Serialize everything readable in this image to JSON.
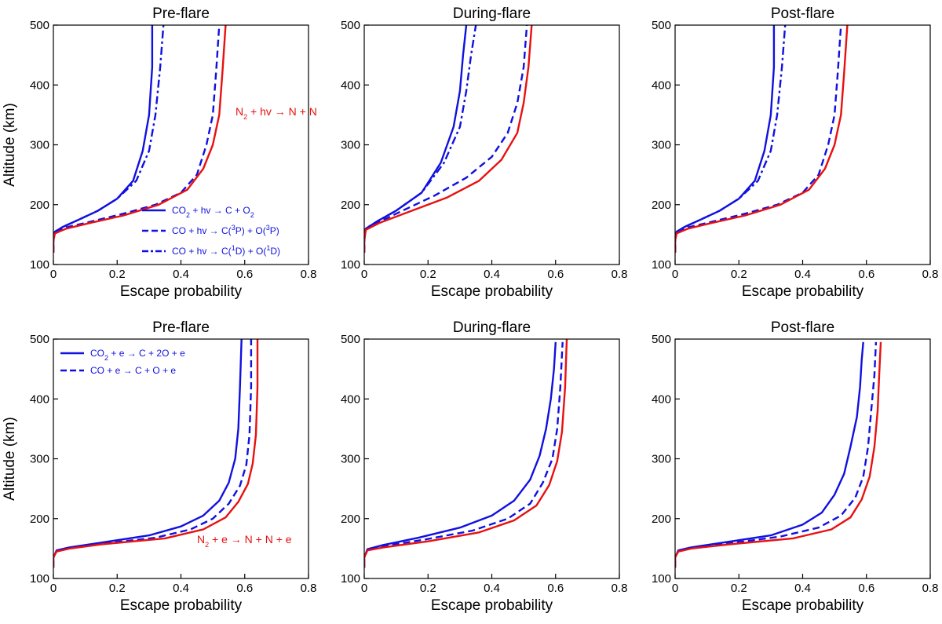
{
  "figure": {
    "colors": {
      "blue": "#1010e0",
      "red": "#e81010",
      "axis": "#000000"
    }
  },
  "chart_data": [
    {
      "type": "line",
      "title": "Pre-flare",
      "xlabel": "Escape probability",
      "ylabel": "Altitude (km)",
      "xlim": [
        0,
        0.8
      ],
      "ylim": [
        100,
        500
      ],
      "xticks": [
        "0",
        "0.2",
        "0.4",
        "0.6",
        "0.8"
      ],
      "yticks": [
        "100",
        "200",
        "300",
        "400",
        "500"
      ],
      "series": [
        {
          "name": "CO2 + hv → C + O2",
          "color": "#1010e0",
          "dash": "solid",
          "x": [
            0,
            0,
            0.005,
            0.03,
            0.08,
            0.14,
            0.2,
            0.25,
            0.28,
            0.3,
            0.31,
            0.31
          ],
          "y": [
            120,
            140,
            155,
            163,
            175,
            190,
            210,
            240,
            290,
            350,
            430,
            500
          ]
        },
        {
          "name": "CO + hv → C(3P) + O(3P)",
          "color": "#1010e0",
          "dash": "dashed",
          "x": [
            0,
            0,
            0.005,
            0.04,
            0.12,
            0.22,
            0.32,
            0.4,
            0.45,
            0.48,
            0.5,
            0.51,
            0.52
          ],
          "y": [
            120,
            140,
            155,
            162,
            172,
            185,
            200,
            220,
            250,
            300,
            350,
            420,
            500
          ]
        },
        {
          "name": "CO + hv → C(1D) + O(1D)",
          "color": "#1010e0",
          "dash": "dashdot",
          "x": [
            0,
            0,
            0.005,
            0.03,
            0.08,
            0.14,
            0.2,
            0.26,
            0.3,
            0.32,
            0.335,
            0.345
          ],
          "y": [
            120,
            140,
            155,
            163,
            175,
            190,
            210,
            240,
            290,
            350,
            430,
            500
          ]
        },
        {
          "name": "N2 + hv → N + N",
          "color": "#e81010",
          "dash": "solid",
          "x": [
            0,
            0,
            0.005,
            0.04,
            0.12,
            0.22,
            0.33,
            0.42,
            0.47,
            0.5,
            0.52,
            0.53,
            0.54
          ],
          "y": [
            120,
            140,
            152,
            160,
            170,
            182,
            200,
            225,
            260,
            300,
            350,
            420,
            500
          ]
        }
      ],
      "annotations": [
        {
          "text": "N2 + hv → N + N",
          "color": "#e81010"
        }
      ],
      "legend": {
        "position": "lower-right",
        "entries": [
          "CO2 + hv → C + O2",
          "CO + hv → C(3P) + O(3P)",
          "CO + hv → C(1D) + O(1D)"
        ]
      }
    },
    {
      "type": "line",
      "title": "During-flare",
      "xlabel": "Escape probability",
      "ylabel": "",
      "xlim": [
        0,
        0.8
      ],
      "ylim": [
        100,
        500
      ],
      "xticks": [
        "0",
        "0.2",
        "0.4",
        "0.6",
        "0.8"
      ],
      "yticks": [
        "100",
        "200",
        "300",
        "400",
        "500"
      ],
      "series": [
        {
          "name": "CO2 + hv → C + O2",
          "color": "#1010e0",
          "dash": "solid",
          "x": [
            0,
            0,
            0.005,
            0.04,
            0.1,
            0.18,
            0.24,
            0.28,
            0.3,
            0.31,
            0.32
          ],
          "y": [
            120,
            140,
            160,
            172,
            190,
            220,
            270,
            330,
            390,
            450,
            500
          ]
        },
        {
          "name": "CO + hv → C(3P) + O(3P)",
          "color": "#1010e0",
          "dash": "dashed",
          "x": [
            0,
            0,
            0.005,
            0.05,
            0.12,
            0.22,
            0.32,
            0.4,
            0.45,
            0.48,
            0.5,
            0.51
          ],
          "y": [
            120,
            140,
            160,
            172,
            190,
            215,
            245,
            280,
            320,
            370,
            430,
            500
          ]
        },
        {
          "name": "CO + hv → C(1D) + O(1D)",
          "color": "#1010e0",
          "dash": "dashdot",
          "x": [
            0,
            0,
            0.005,
            0.04,
            0.1,
            0.18,
            0.25,
            0.3,
            0.32,
            0.335,
            0.35
          ],
          "y": [
            120,
            140,
            160,
            172,
            190,
            220,
            270,
            330,
            390,
            450,
            500
          ]
        },
        {
          "name": "N2 + hv → N + N",
          "color": "#e81010",
          "dash": "solid",
          "x": [
            0,
            0,
            0.005,
            0.05,
            0.14,
            0.26,
            0.36,
            0.43,
            0.48,
            0.5,
            0.515,
            0.525
          ],
          "y": [
            120,
            140,
            158,
            170,
            188,
            212,
            240,
            275,
            320,
            370,
            430,
            500
          ]
        }
      ]
    },
    {
      "type": "line",
      "title": "Post-flare",
      "xlabel": "Escape probability",
      "ylabel": "",
      "xlim": [
        0,
        0.8
      ],
      "ylim": [
        100,
        500
      ],
      "xticks": [
        "0",
        "0.2",
        "0.4",
        "0.6",
        "0.8"
      ],
      "yticks": [
        "100",
        "200",
        "300",
        "400",
        "500"
      ],
      "series": [
        {
          "name": "CO2 + hv → C + O2",
          "color": "#1010e0",
          "dash": "solid",
          "x": [
            0,
            0,
            0.005,
            0.03,
            0.08,
            0.14,
            0.2,
            0.25,
            0.28,
            0.3,
            0.31,
            0.31
          ],
          "y": [
            120,
            140,
            155,
            163,
            175,
            190,
            210,
            240,
            290,
            350,
            430,
            500
          ]
        },
        {
          "name": "CO + hv → C(3P) + O(3P)",
          "color": "#1010e0",
          "dash": "dashed",
          "x": [
            0,
            0,
            0.005,
            0.04,
            0.12,
            0.22,
            0.32,
            0.4,
            0.45,
            0.48,
            0.5,
            0.51,
            0.52
          ],
          "y": [
            120,
            140,
            155,
            162,
            172,
            185,
            200,
            220,
            250,
            300,
            350,
            420,
            500
          ]
        },
        {
          "name": "CO + hv → C(1D) + O(1D)",
          "color": "#1010e0",
          "dash": "dashdot",
          "x": [
            0,
            0,
            0.005,
            0.03,
            0.08,
            0.14,
            0.2,
            0.26,
            0.3,
            0.32,
            0.335,
            0.345
          ],
          "y": [
            120,
            140,
            155,
            163,
            175,
            190,
            210,
            240,
            290,
            350,
            430,
            500
          ]
        },
        {
          "name": "N2 + hv → N + N",
          "color": "#e81010",
          "dash": "solid",
          "x": [
            0,
            0,
            0.005,
            0.04,
            0.12,
            0.22,
            0.33,
            0.42,
            0.47,
            0.5,
            0.52,
            0.53,
            0.54
          ],
          "y": [
            120,
            140,
            152,
            160,
            170,
            182,
            200,
            225,
            260,
            300,
            350,
            420,
            500
          ]
        }
      ]
    },
    {
      "type": "line",
      "title": "Pre-flare",
      "xlabel": "Escape probability",
      "ylabel": "Altitude (km)",
      "xlim": [
        0,
        0.8
      ],
      "ylim": [
        100,
        500
      ],
      "xticks": [
        "0",
        "0.2",
        "0.4",
        "0.6",
        "0.8"
      ],
      "yticks": [
        "100",
        "200",
        "300",
        "400",
        "500"
      ],
      "series": [
        {
          "name": "CO2 + e → C + 2O + e",
          "color": "#1010e0",
          "dash": "solid",
          "x": [
            0,
            0,
            0.01,
            0.05,
            0.15,
            0.3,
            0.4,
            0.47,
            0.52,
            0.55,
            0.57,
            0.58,
            0.585,
            0.59
          ],
          "y": [
            118,
            135,
            147,
            152,
            160,
            172,
            187,
            205,
            230,
            260,
            300,
            350,
            420,
            500
          ]
        },
        {
          "name": "CO + e → C + O + e",
          "color": "#1010e0",
          "dash": "dashed",
          "x": [
            0,
            0,
            0.01,
            0.05,
            0.15,
            0.32,
            0.43,
            0.5,
            0.55,
            0.585,
            0.605,
            0.615,
            0.62,
            0.62
          ],
          "y": [
            118,
            135,
            146,
            151,
            158,
            168,
            182,
            200,
            225,
            255,
            290,
            340,
            420,
            500
          ]
        },
        {
          "name": "N2 + e → N + N + e",
          "color": "#e81010",
          "dash": "solid",
          "x": [
            0,
            0,
            0.01,
            0.05,
            0.15,
            0.35,
            0.47,
            0.54,
            0.58,
            0.61,
            0.625,
            0.635,
            0.64,
            0.64
          ],
          "y": [
            118,
            135,
            145,
            150,
            157,
            167,
            182,
            202,
            228,
            258,
            292,
            340,
            420,
            500
          ]
        }
      ],
      "annotations": [
        {
          "text": "N2 + e → N + N + e",
          "color": "#e81010"
        }
      ],
      "legend": {
        "position": "top-left",
        "entries": [
          "CO2 + e → C + 2O + e",
          "CO + e → C + O + e"
        ]
      }
    },
    {
      "type": "line",
      "title": "During-flare",
      "xlabel": "Escape probability",
      "ylabel": "",
      "xlim": [
        0,
        0.8
      ],
      "ylim": [
        100,
        500
      ],
      "xticks": [
        "0",
        "0.2",
        "0.4",
        "0.6",
        "0.8"
      ],
      "yticks": [
        "100",
        "200",
        "300",
        "400",
        "500"
      ],
      "series": [
        {
          "name": "CO2 + e → C + 2O + e",
          "color": "#1010e0",
          "dash": "solid",
          "x": [
            0,
            0,
            0.01,
            0.06,
            0.17,
            0.3,
            0.4,
            0.47,
            0.52,
            0.55,
            0.57,
            0.585,
            0.595,
            0.6
          ],
          "y": [
            118,
            135,
            149,
            156,
            168,
            185,
            205,
            230,
            265,
            305,
            350,
            400,
            450,
            495
          ]
        },
        {
          "name": "CO + e → C + O + e",
          "color": "#1010e0",
          "dash": "dashed",
          "x": [
            0,
            0,
            0.01,
            0.06,
            0.19,
            0.34,
            0.45,
            0.52,
            0.56,
            0.59,
            0.605,
            0.615,
            0.622
          ],
          "y": [
            118,
            135,
            148,
            154,
            165,
            180,
            200,
            225,
            260,
            300,
            350,
            420,
            495
          ]
        },
        {
          "name": "N2 + e → N + N + e",
          "color": "#e81010",
          "dash": "solid",
          "x": [
            0,
            0,
            0.01,
            0.06,
            0.2,
            0.36,
            0.47,
            0.54,
            0.58,
            0.605,
            0.62,
            0.63,
            0.635
          ],
          "y": [
            118,
            135,
            147,
            152,
            162,
            177,
            197,
            222,
            256,
            296,
            345,
            420,
            500
          ]
        }
      ]
    },
    {
      "type": "line",
      "title": "Post-flare",
      "xlabel": "Escape probability",
      "ylabel": "",
      "xlim": [
        0,
        0.8
      ],
      "ylim": [
        100,
        500
      ],
      "xticks": [
        "0",
        "0.2",
        "0.4",
        "0.6",
        "0.8"
      ],
      "yticks": [
        "100",
        "200",
        "300",
        "400",
        "500"
      ],
      "series": [
        {
          "name": "CO2 + e → C + 2O + e",
          "color": "#1010e0",
          "dash": "solid",
          "x": [
            0,
            0,
            0.01,
            0.05,
            0.15,
            0.3,
            0.4,
            0.46,
            0.5,
            0.53,
            0.55,
            0.57,
            0.58,
            0.585,
            0.59
          ],
          "y": [
            118,
            135,
            147,
            152,
            160,
            172,
            190,
            210,
            240,
            275,
            320,
            370,
            420,
            465,
            495
          ]
        },
        {
          "name": "CO + e → C + O + e",
          "color": "#1010e0",
          "dash": "dashed",
          "x": [
            0,
            0,
            0.01,
            0.05,
            0.16,
            0.33,
            0.45,
            0.52,
            0.565,
            0.59,
            0.605,
            0.615,
            0.625,
            0.63
          ],
          "y": [
            118,
            135,
            146,
            151,
            158,
            170,
            185,
            205,
            235,
            270,
            320,
            380,
            440,
            495
          ]
        },
        {
          "name": "N2 + e → N + N + e",
          "color": "#e81010",
          "dash": "solid",
          "x": [
            0,
            0,
            0.01,
            0.05,
            0.17,
            0.37,
            0.49,
            0.55,
            0.585,
            0.61,
            0.625,
            0.635,
            0.64,
            0.645
          ],
          "y": [
            118,
            135,
            145,
            150,
            157,
            167,
            182,
            202,
            232,
            270,
            320,
            380,
            440,
            495
          ]
        }
      ]
    }
  ]
}
